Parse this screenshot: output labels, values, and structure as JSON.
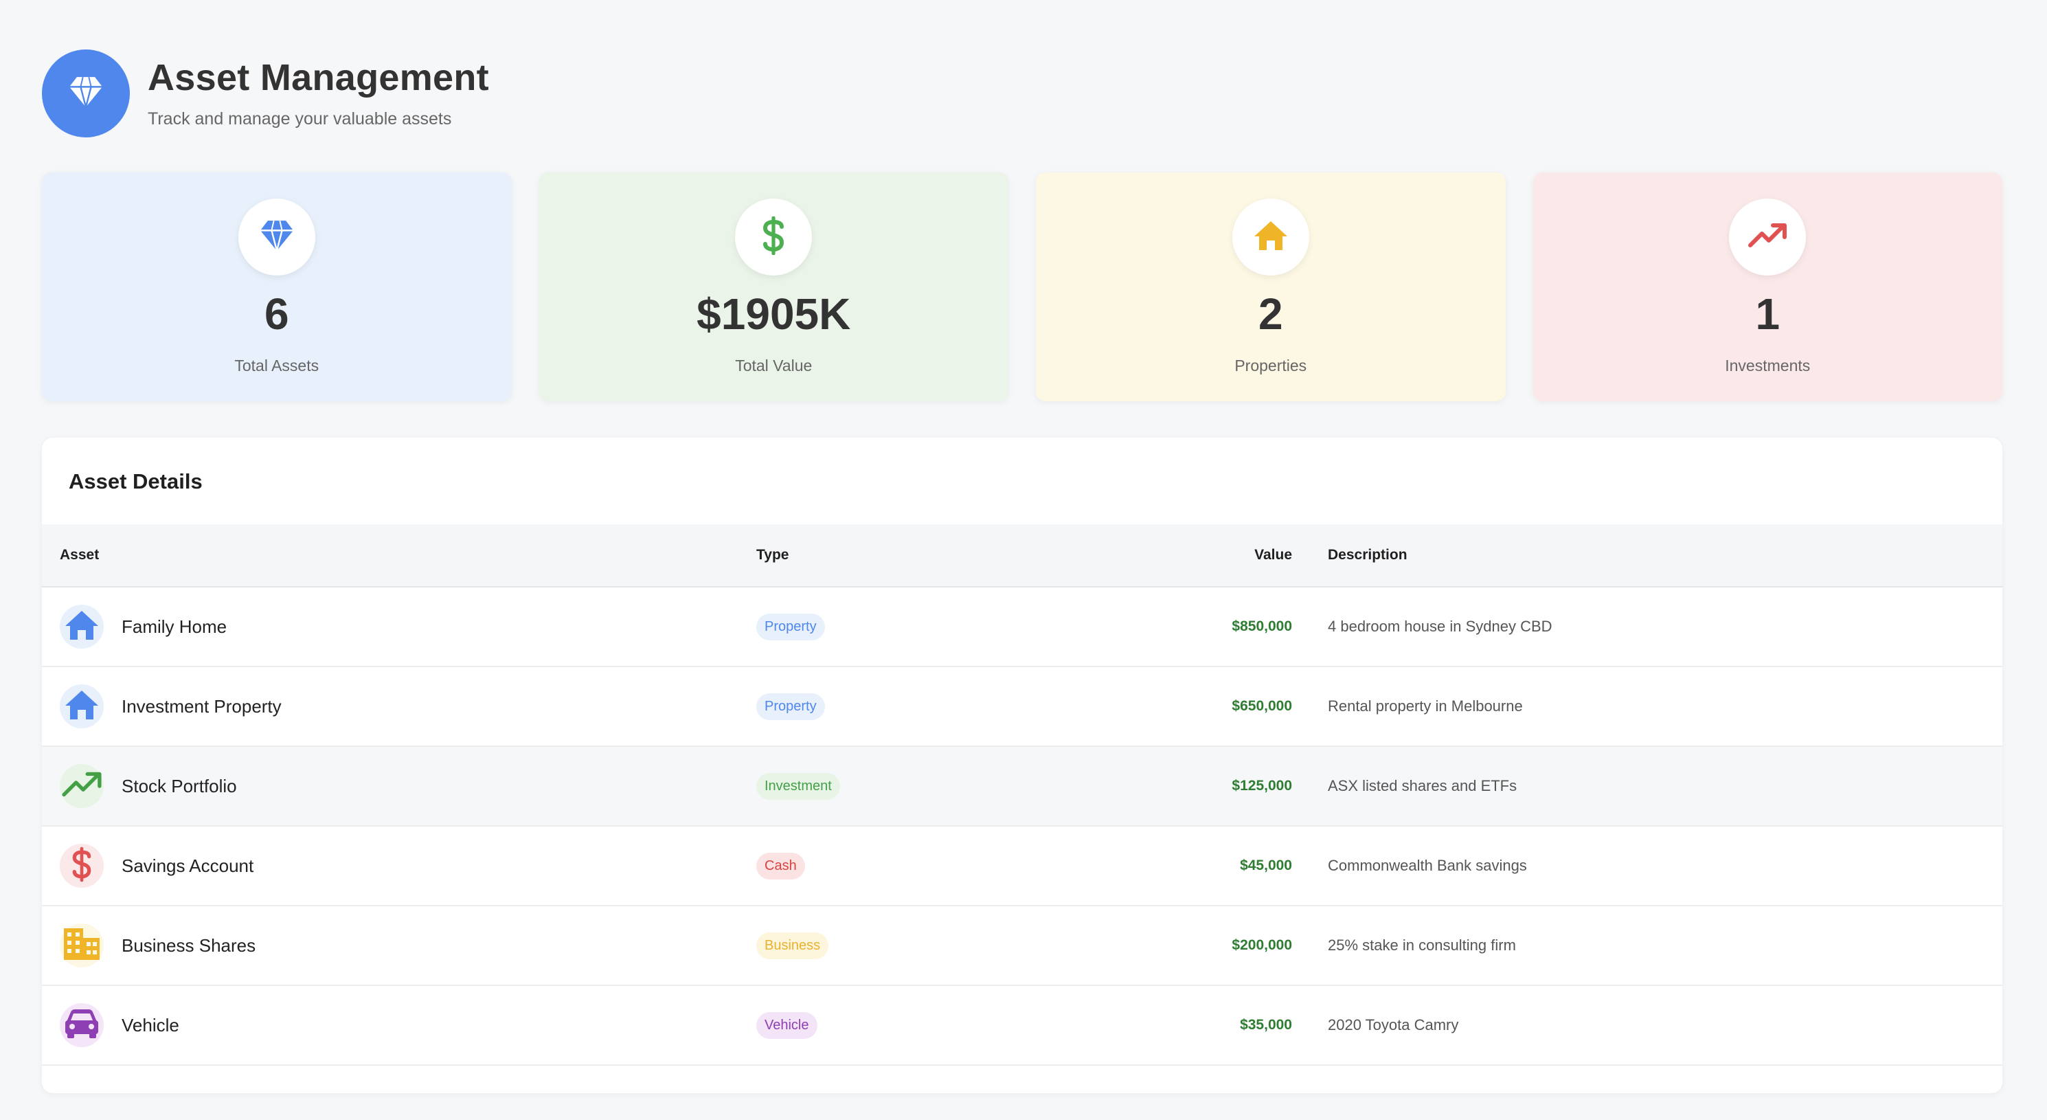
{
  "header": {
    "title": "Asset Management",
    "subtitle": "Track and manage your valuable assets",
    "logo_icon": "diamond-icon",
    "logo_color": "#4f87ec"
  },
  "stats": [
    {
      "icon": "diamond-icon",
      "value": "6",
      "label": "Total Assets",
      "bg": "#e7f0fb",
      "icon_color": "#4f87ec"
    },
    {
      "icon": "dollar-icon",
      "value": "$1905K",
      "label": "Total Value",
      "bg": "#ebf4e8",
      "icon_color": "#4caf50"
    },
    {
      "icon": "home-icon",
      "value": "2",
      "label": "Properties",
      "bg": "#fdf8e4",
      "icon_color": "#f0b429"
    },
    {
      "icon": "trending-up-icon",
      "value": "1",
      "label": "Investments",
      "bg": "#fbe9ea",
      "icon_color": "#e05252"
    }
  ],
  "table": {
    "title": "Asset Details",
    "columns": {
      "asset": "Asset",
      "type": "Type",
      "value": "Value",
      "description": "Description"
    },
    "rows": [
      {
        "icon": "home-icon",
        "name": "Family Home",
        "type": "Property",
        "value": "$850,000",
        "description": "4 bedroom house in Sydney CBD"
      },
      {
        "icon": "home-icon",
        "name": "Investment Property",
        "type": "Property",
        "value": "$650,000",
        "description": "Rental property in Melbourne"
      },
      {
        "icon": "trending-up-icon",
        "name": "Stock Portfolio",
        "type": "Investment",
        "value": "$125,000",
        "description": "ASX listed shares and ETFs"
      },
      {
        "icon": "dollar-icon",
        "name": "Savings Account",
        "type": "Cash",
        "value": "$45,000",
        "description": "Commonwealth Bank savings"
      },
      {
        "icon": "building-icon",
        "name": "Business Shares",
        "type": "Business",
        "value": "$200,000",
        "description": "25% stake in consulting firm"
      },
      {
        "icon": "car-icon",
        "name": "Vehicle",
        "type": "Vehicle",
        "value": "$35,000",
        "description": "2020 Toyota Camry"
      }
    ]
  },
  "colors": {
    "accent": "#4f87ec",
    "value_green": "#2e7d32",
    "property": "#4f87ec",
    "investment": "#43a047",
    "cash": "#e05252",
    "business": "#f0b429",
    "vehicle": "#8e3fb3"
  }
}
